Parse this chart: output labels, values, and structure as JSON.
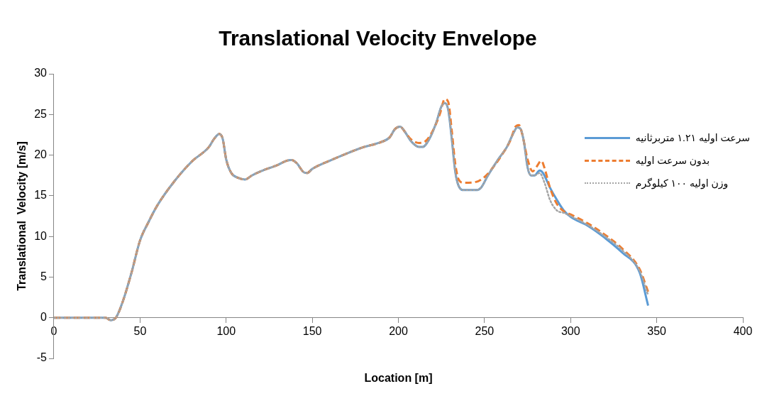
{
  "chart_data": {
    "type": "line",
    "title": "Translational Velocity Envelope",
    "xlabel": "Location [m]",
    "ylabel": "Translational  Velocity [m/s]",
    "xlim": [
      0,
      400
    ],
    "xticks": [
      0,
      50,
      100,
      150,
      200,
      250,
      300,
      350,
      400
    ],
    "ylim": [
      -5,
      30
    ],
    "yticks": [
      -5,
      0,
      5,
      10,
      15,
      20,
      25,
      30
    ],
    "grid": false,
    "legend": "right",
    "marker": "none",
    "series": [
      {
        "name": "سرعت اولیه ۱.۲۱ متربرثانیه",
        "color": "#5b9bd5",
        "line_style": "solid",
        "x": [
          0,
          30,
          33,
          36,
          40,
          45,
          50,
          55,
          60,
          70,
          80,
          90,
          93,
          96,
          98,
          100,
          103,
          107,
          111,
          115,
          120,
          130,
          135,
          138,
          141,
          145,
          147,
          150,
          160,
          170,
          180,
          190,
          195,
          198,
          201,
          204,
          207,
          212,
          214,
          218,
          222,
          225,
          227,
          229,
          231,
          233,
          235,
          238,
          245,
          248,
          252,
          258,
          263,
          267,
          269,
          271,
          273,
          275,
          277,
          279,
          282,
          284,
          288,
          292,
          296,
          300,
          310,
          320,
          330,
          340,
          345
        ],
        "values": [
          0,
          0,
          -0.3,
          0,
          2,
          5.5,
          9.5,
          11.8,
          13.8,
          16.8,
          19.2,
          21,
          22,
          22.6,
          22,
          19.5,
          17.8,
          17.2,
          17,
          17.5,
          18,
          18.8,
          19.3,
          19.4,
          19,
          17.9,
          17.8,
          18.3,
          19.3,
          20.2,
          21,
          21.6,
          22.2,
          23.2,
          23.5,
          22.8,
          21.8,
          21,
          21,
          22,
          24,
          26,
          26.4,
          25.5,
          22,
          18,
          16.2,
          15.7,
          15.7,
          16,
          17.5,
          19.5,
          21,
          22.8,
          23.4,
          23.2,
          21.5,
          18.5,
          17.5,
          17.5,
          18.1,
          17.8,
          16,
          14.5,
          13.2,
          12.4,
          11.3,
          9.8,
          8,
          5.6,
          1.5
        ]
      },
      {
        "name": "بدون سرعت اولیه",
        "color": "#ed7d31",
        "line_style": "dashed",
        "x": [
          0,
          30,
          33,
          36,
          40,
          45,
          50,
          55,
          60,
          70,
          80,
          90,
          93,
          96,
          98,
          100,
          103,
          107,
          111,
          115,
          120,
          130,
          135,
          138,
          141,
          145,
          147,
          150,
          160,
          170,
          180,
          190,
          195,
          198,
          201,
          204,
          207,
          212,
          215,
          220,
          224,
          227,
          229,
          231,
          233,
          235,
          238,
          245,
          250,
          255,
          260,
          265,
          268,
          270,
          272,
          275,
          278,
          280,
          283,
          285,
          288,
          292,
          296,
          300,
          310,
          320,
          330,
          340,
          345
        ],
        "values": [
          0,
          0,
          -0.3,
          0,
          2,
          5.5,
          9.5,
          11.8,
          13.8,
          16.8,
          19.2,
          21,
          22,
          22.6,
          22,
          19.5,
          17.8,
          17.2,
          17,
          17.5,
          18,
          18.8,
          19.3,
          19.4,
          19,
          17.9,
          17.8,
          18.3,
          19.3,
          20.2,
          21,
          21.6,
          22.2,
          23.2,
          23.5,
          22.8,
          22,
          21.5,
          21.6,
          23,
          25,
          26.9,
          26.5,
          23,
          19,
          17,
          16.6,
          16.7,
          17.3,
          18.5,
          20,
          21.8,
          23.5,
          23.7,
          22.5,
          19.5,
          18,
          18.5,
          19.3,
          18.3,
          16,
          14,
          13.1,
          12.7,
          11.6,
          10.2,
          8.5,
          6,
          3.2
        ]
      },
      {
        "name": "وزن اولیه ۱۰۰ کیلوگرم",
        "color": "#a5a5a5",
        "line_style": "dotted",
        "x": [
          0,
          30,
          33,
          36,
          40,
          45,
          50,
          55,
          60,
          70,
          80,
          90,
          93,
          96,
          98,
          100,
          103,
          107,
          111,
          115,
          120,
          130,
          135,
          138,
          141,
          145,
          147,
          150,
          160,
          170,
          180,
          190,
          195,
          198,
          201,
          204,
          207,
          212,
          214,
          218,
          222,
          225,
          227,
          229,
          231,
          233,
          235,
          238,
          245,
          248,
          252,
          258,
          263,
          267,
          269,
          271,
          273,
          275,
          277,
          279,
          282,
          285,
          288,
          292,
          296,
          300,
          310,
          320,
          330,
          340,
          345
        ],
        "values": [
          0,
          0,
          -0.3,
          0,
          2,
          5.5,
          9.5,
          11.8,
          13.8,
          16.8,
          19.2,
          21,
          22,
          22.6,
          22,
          19.5,
          17.8,
          17.2,
          17,
          17.5,
          18,
          18.8,
          19.3,
          19.4,
          19,
          17.9,
          17.8,
          18.3,
          19.3,
          20.2,
          21,
          21.6,
          22.2,
          23.2,
          23.5,
          22.8,
          21.8,
          21,
          21,
          22,
          24,
          26,
          26.4,
          25.5,
          22,
          18,
          16.2,
          15.7,
          15.7,
          16,
          17.5,
          19.5,
          21,
          22.8,
          23.4,
          23.2,
          21.5,
          18.5,
          17.5,
          17.5,
          17.8,
          16.5,
          14.5,
          13.2,
          12.9,
          12.5,
          11.4,
          10,
          8.3,
          5.8,
          2.8
        ]
      }
    ]
  }
}
